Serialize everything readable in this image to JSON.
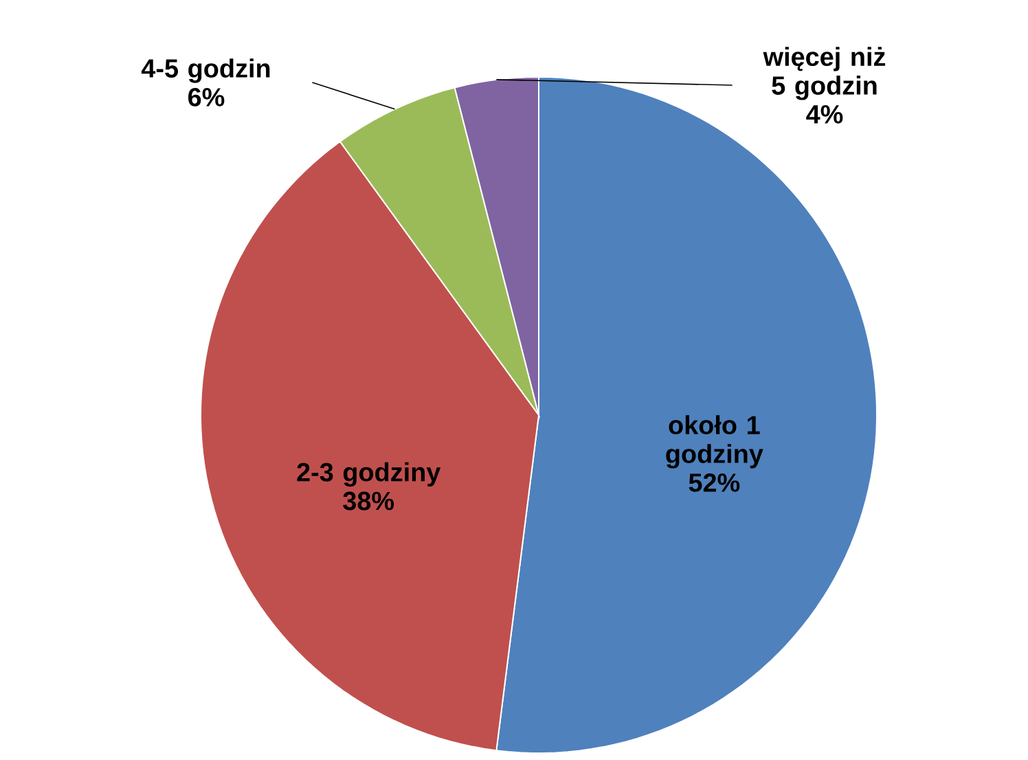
{
  "chart_data": {
    "type": "pie",
    "categories": [
      "około 1 godziny",
      "2-3 godziny",
      "4-5 godzin",
      "więcej niż 5 godzin"
    ],
    "values": [
      52,
      38,
      6,
      4
    ],
    "colors": [
      "#4f81bd",
      "#c0504d",
      "#9bbb59",
      "#8064a2"
    ],
    "value_labels": [
      "52%",
      "38%",
      "6%",
      "4%"
    ]
  }
}
